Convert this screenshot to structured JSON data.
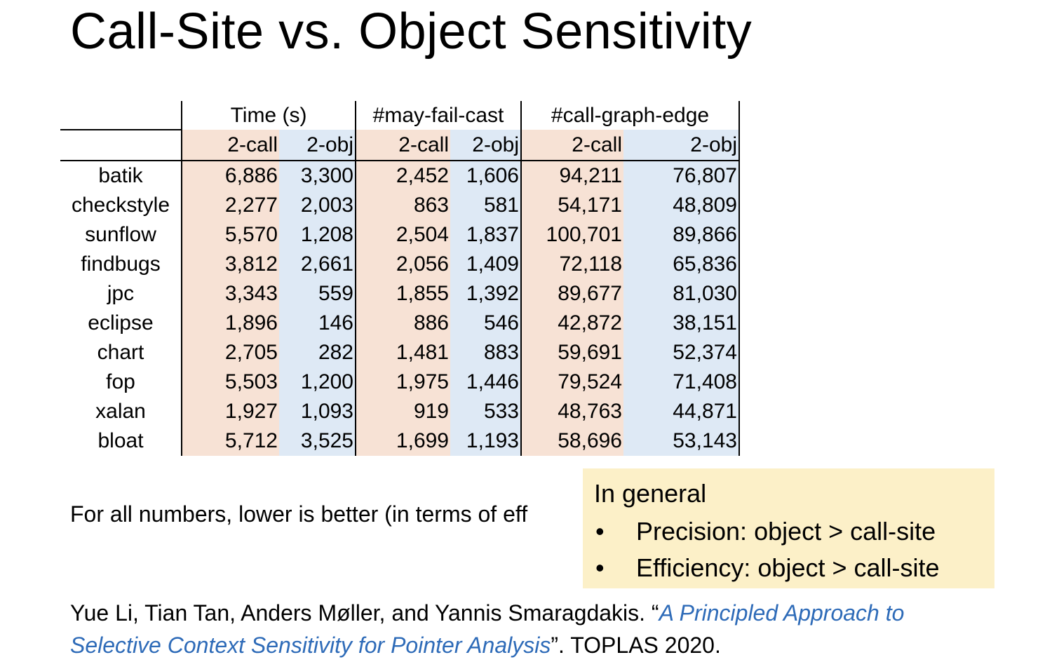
{
  "slide": {
    "title": "Call-Site vs. Object Sensitivity"
  },
  "table": {
    "groups": [
      "Time (s)",
      "#may-fail-cast",
      "#call-graph-edge"
    ],
    "subheaders": [
      "2-call",
      "2-obj",
      "2-call",
      "2-obj",
      "2-call",
      "2-obj"
    ],
    "rows": [
      {
        "name": "batik",
        "values": [
          "6,886",
          "3,300",
          "2,452",
          "1,606",
          "94,211",
          "76,807"
        ]
      },
      {
        "name": "checkstyle",
        "values": [
          "2,277",
          "2,003",
          "863",
          "581",
          "54,171",
          "48,809"
        ]
      },
      {
        "name": "sunflow",
        "values": [
          "5,570",
          "1,208",
          "2,504",
          "1,837",
          "100,701",
          "89,866"
        ]
      },
      {
        "name": "findbugs",
        "values": [
          "3,812",
          "2,661",
          "2,056",
          "1,409",
          "72,118",
          "65,836"
        ]
      },
      {
        "name": "jpc",
        "values": [
          "3,343",
          "559",
          "1,855",
          "1,392",
          "89,677",
          "81,030"
        ]
      },
      {
        "name": "eclipse",
        "values": [
          "1,896",
          "146",
          "886",
          "546",
          "42,872",
          "38,151"
        ]
      },
      {
        "name": "chart",
        "values": [
          "2,705",
          "282",
          "1,481",
          "883",
          "59,691",
          "52,374"
        ]
      },
      {
        "name": "fop",
        "values": [
          "5,503",
          "1,200",
          "1,975",
          "1,446",
          "79,524",
          "71,408"
        ]
      },
      {
        "name": "xalan",
        "values": [
          "1,927",
          "1,093",
          "919",
          "533",
          "48,763",
          "44,871"
        ]
      },
      {
        "name": "bloat",
        "values": [
          "5,712",
          "3,525",
          "1,699",
          "1,193",
          "58,696",
          "53,143"
        ]
      }
    ]
  },
  "note": "For all numbers, lower is better (in terms of eff",
  "callout": {
    "heading": "In general",
    "bullet_symbol": "•",
    "items": [
      "Precision: object > call-site",
      "Efficiency: object > call-site"
    ]
  },
  "citation": {
    "authors": "Yue Li, Tian Tan, Anders Møller, and Yannis Smaragdakis. “",
    "link_text": "A Principled Approach to Selective Context Sensitivity for Pointer Analysis",
    "venue": "”. TOPLAS 2020."
  },
  "colors": {
    "call_column_bg": "#f7e2d5",
    "obj_column_bg": "#dee9f5",
    "callout_bg": "#fcf0c8",
    "link": "#2e6bb8"
  }
}
